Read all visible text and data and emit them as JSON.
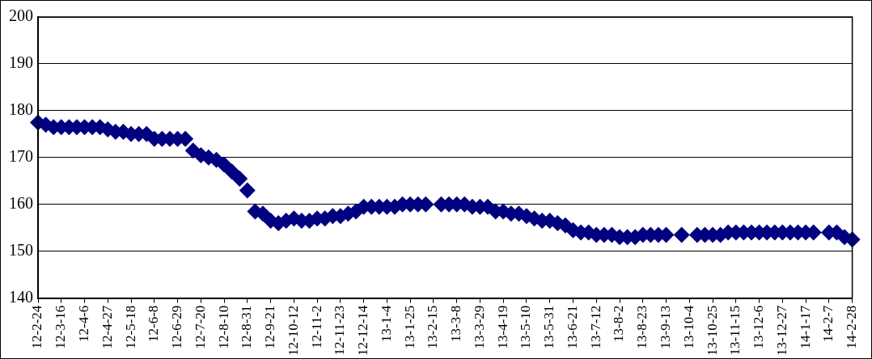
{
  "chart_data": {
    "type": "scatter",
    "marker": "diamond",
    "grid": "y",
    "legend": false,
    "categories": [
      "12-2-24",
      null,
      null,
      "12-3-16",
      null,
      null,
      "12-4-6",
      null,
      null,
      "12-4-27",
      null,
      null,
      "12-5-18",
      null,
      null,
      "12-6-8",
      null,
      null,
      "12-6-29",
      null,
      null,
      "12-7-20",
      null,
      null,
      "12-8-10",
      null,
      null,
      "12-8-31",
      null,
      null,
      "12-9-21",
      null,
      null,
      "12-10-12",
      null,
      null,
      "12-11-2",
      null,
      null,
      "12-11-23",
      null,
      null,
      "12-12-14",
      null,
      null,
      "13-1-4",
      null,
      null,
      "13-1-25",
      null,
      null,
      "13-2-15",
      null,
      null,
      "13-3-8",
      null,
      null,
      "13-3-29",
      null,
      null,
      "13-4-19",
      null,
      null,
      "13-5-10",
      null,
      null,
      "13-5-31",
      null,
      null,
      "13-6-21",
      null,
      null,
      "13-7-12",
      null,
      null,
      "13-8-2",
      null,
      null,
      "13-8-23",
      null,
      null,
      "13-9-13",
      null,
      null,
      "13-10-4",
      null,
      null,
      "13-10-25",
      null,
      null,
      "13-11-15",
      null,
      null,
      "13-12-6",
      null,
      null,
      "13-12-27",
      null,
      null,
      "14-1-17",
      null,
      null,
      "14-2-7",
      null,
      null,
      "14-2-28"
    ],
    "series": [
      {
        "color": "#000080",
        "values": [
          177.5,
          177,
          176.5,
          176.5,
          176.5,
          176.5,
          176.5,
          176.5,
          176.5,
          176,
          175.5,
          175.5,
          175,
          175,
          175,
          174,
          174,
          174,
          174,
          174,
          171.5,
          170.5,
          170,
          169.5,
          168.5,
          167,
          165.5,
          163,
          158.5,
          158,
          156.5,
          156,
          156.5,
          157,
          156.5,
          156.5,
          157,
          157,
          157.5,
          157.5,
          158,
          158.5,
          159.5,
          159.5,
          159.5,
          159.5,
          159.5,
          160,
          160,
          160,
          160,
          null,
          160,
          160,
          160,
          160,
          159.5,
          159.5,
          159.5,
          158.5,
          158.5,
          158,
          158,
          157.5,
          157,
          156.5,
          156.5,
          156,
          155.5,
          154.5,
          154,
          154,
          153.5,
          153.5,
          153.5,
          153,
          153,
          153,
          153.5,
          153.5,
          153.5,
          153.5,
          null,
          153.5,
          null,
          153.5,
          153.5,
          153.5,
          153.5,
          154,
          154,
          154,
          154,
          154,
          154,
          154,
          154,
          154,
          154,
          154,
          154,
          null,
          154,
          154,
          153,
          152.5
        ]
      }
    ],
    "ylim": [
      140,
      200
    ],
    "yticks": [
      140,
      150,
      160,
      170,
      180,
      190,
      200
    ]
  }
}
